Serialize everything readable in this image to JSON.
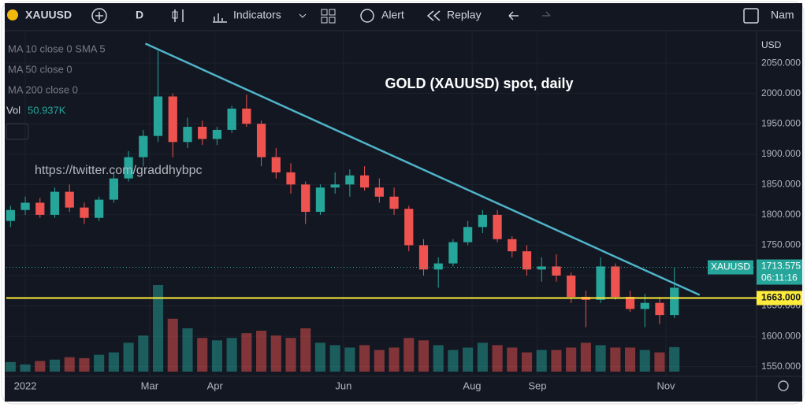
{
  "toolbar": {
    "symbol": "XAUUSD",
    "interval": "D",
    "indicators": "Indicators",
    "alert": "Alert",
    "replay": "Replay",
    "name": "Nam"
  },
  "chart_data": {
    "type": "candlestick",
    "title": "GOLD (XAUUSD) spot, daily",
    "watermark": "https://twitter.com/graddhybpc",
    "legend": [
      "MA 10 close 0 SMA 5",
      "MA 50 close 0",
      "MA 200 close 0"
    ],
    "volume_name": "Vol",
    "volume_label": "50.937K",
    "currency": "USD",
    "x": [
      -7,
      0,
      7,
      14,
      21,
      28,
      35,
      42,
      49,
      56,
      63,
      70,
      77,
      84,
      91,
      98,
      105,
      112,
      119,
      126,
      133,
      140,
      147,
      154,
      161,
      168,
      175,
      182,
      189,
      196,
      203,
      210,
      217,
      224,
      231,
      238,
      245,
      252,
      259,
      266,
      273,
      280,
      287,
      294,
      301,
      308
    ],
    "open": [
      1790,
      1808,
      1820,
      1800,
      1838,
      1812,
      1795,
      1825,
      1860,
      1895,
      1930,
      1995,
      1920,
      1945,
      1925,
      1940,
      1975,
      1950,
      1895,
      1870,
      1850,
      1805,
      1845,
      1850,
      1865,
      1845,
      1830,
      1810,
      1750,
      1710,
      1720,
      1755,
      1780,
      1800,
      1760,
      1740,
      1710,
      1715,
      1700,
      1665,
      1660,
      1715,
      1665,
      1645,
      1655,
      1635
    ],
    "high": [
      1815,
      1830,
      1828,
      1845,
      1850,
      1820,
      1830,
      1870,
      1905,
      1940,
      2070,
      2000,
      1960,
      1955,
      1945,
      1980,
      1998,
      1955,
      1910,
      1885,
      1855,
      1850,
      1870,
      1875,
      1880,
      1860,
      1845,
      1815,
      1760,
      1730,
      1760,
      1790,
      1808,
      1808,
      1765,
      1750,
      1730,
      1735,
      1705,
      1675,
      1730,
      1720,
      1675,
      1670,
      1665,
      1713
    ],
    "low": [
      1780,
      1800,
      1795,
      1795,
      1805,
      1785,
      1790,
      1820,
      1855,
      1880,
      1920,
      1895,
      1910,
      1915,
      1915,
      1935,
      1945,
      1880,
      1860,
      1835,
      1785,
      1800,
      1835,
      1830,
      1840,
      1820,
      1800,
      1740,
      1700,
      1680,
      1715,
      1750,
      1770,
      1755,
      1730,
      1700,
      1690,
      1690,
      1655,
      1615,
      1655,
      1660,
      1640,
      1615,
      1620,
      1630
    ],
    "close": [
      1808,
      1820,
      1800,
      1838,
      1812,
      1795,
      1825,
      1860,
      1895,
      1930,
      1995,
      1920,
      1945,
      1925,
      1940,
      1975,
      1950,
      1895,
      1870,
      1850,
      1805,
      1845,
      1850,
      1865,
      1845,
      1830,
      1810,
      1750,
      1710,
      1720,
      1755,
      1780,
      1800,
      1760,
      1740,
      1710,
      1715,
      1700,
      1665,
      1660,
      1715,
      1665,
      1645,
      1655,
      1635,
      1680
    ],
    "volume": [
      20,
      15,
      22,
      25,
      30,
      28,
      35,
      40,
      60,
      75,
      180,
      110,
      90,
      70,
      65,
      70,
      80,
      85,
      75,
      70,
      90,
      60,
      55,
      50,
      55,
      45,
      50,
      70,
      65,
      55,
      45,
      50,
      60,
      55,
      50,
      40,
      45,
      45,
      50,
      60,
      55,
      50,
      50,
      45,
      40,
      50.937
    ],
    "up_color": "#26a69a",
    "down_color": "#ef5350",
    "xlim": [
      -9,
      347
    ],
    "ylim": [
      1534,
      2102
    ],
    "xticks": [
      {
        "value": 0,
        "label": "2022"
      },
      {
        "value": 59,
        "label": "Mar"
      },
      {
        "value": 90,
        "label": "Apr"
      },
      {
        "value": 151,
        "label": "Jun"
      },
      {
        "value": 212,
        "label": "Aug"
      },
      {
        "value": 243,
        "label": "Sep"
      },
      {
        "value": 304,
        "label": "Nov"
      }
    ],
    "yticks": [
      {
        "value": 1550,
        "label": "1550.000"
      },
      {
        "value": 1600,
        "label": "1600.000"
      },
      {
        "value": 1650,
        "label": "1650.000"
      },
      {
        "value": 1700,
        "label": "1700.000"
      },
      {
        "value": 1750,
        "label": "1750.000"
      },
      {
        "value": 1800,
        "label": "1800.000"
      },
      {
        "value": 1850,
        "label": "1850.000"
      },
      {
        "value": 1900,
        "label": "1900.000"
      },
      {
        "value": 1950,
        "label": "1950.000"
      },
      {
        "value": 2000,
        "label": "2000.000"
      },
      {
        "value": 2050,
        "label": "2050.000"
      }
    ],
    "trendline": {
      "x": [
        57,
        320
      ],
      "y": [
        2082,
        1668
      ],
      "color": "#4fb3c9"
    },
    "hline": {
      "value": 1663,
      "label": "1663.000",
      "color": "#ffeb3b"
    },
    "symbol_tag": "XAUUSD",
    "last_price": 1713.575,
    "countdown": "06:11:16"
  }
}
